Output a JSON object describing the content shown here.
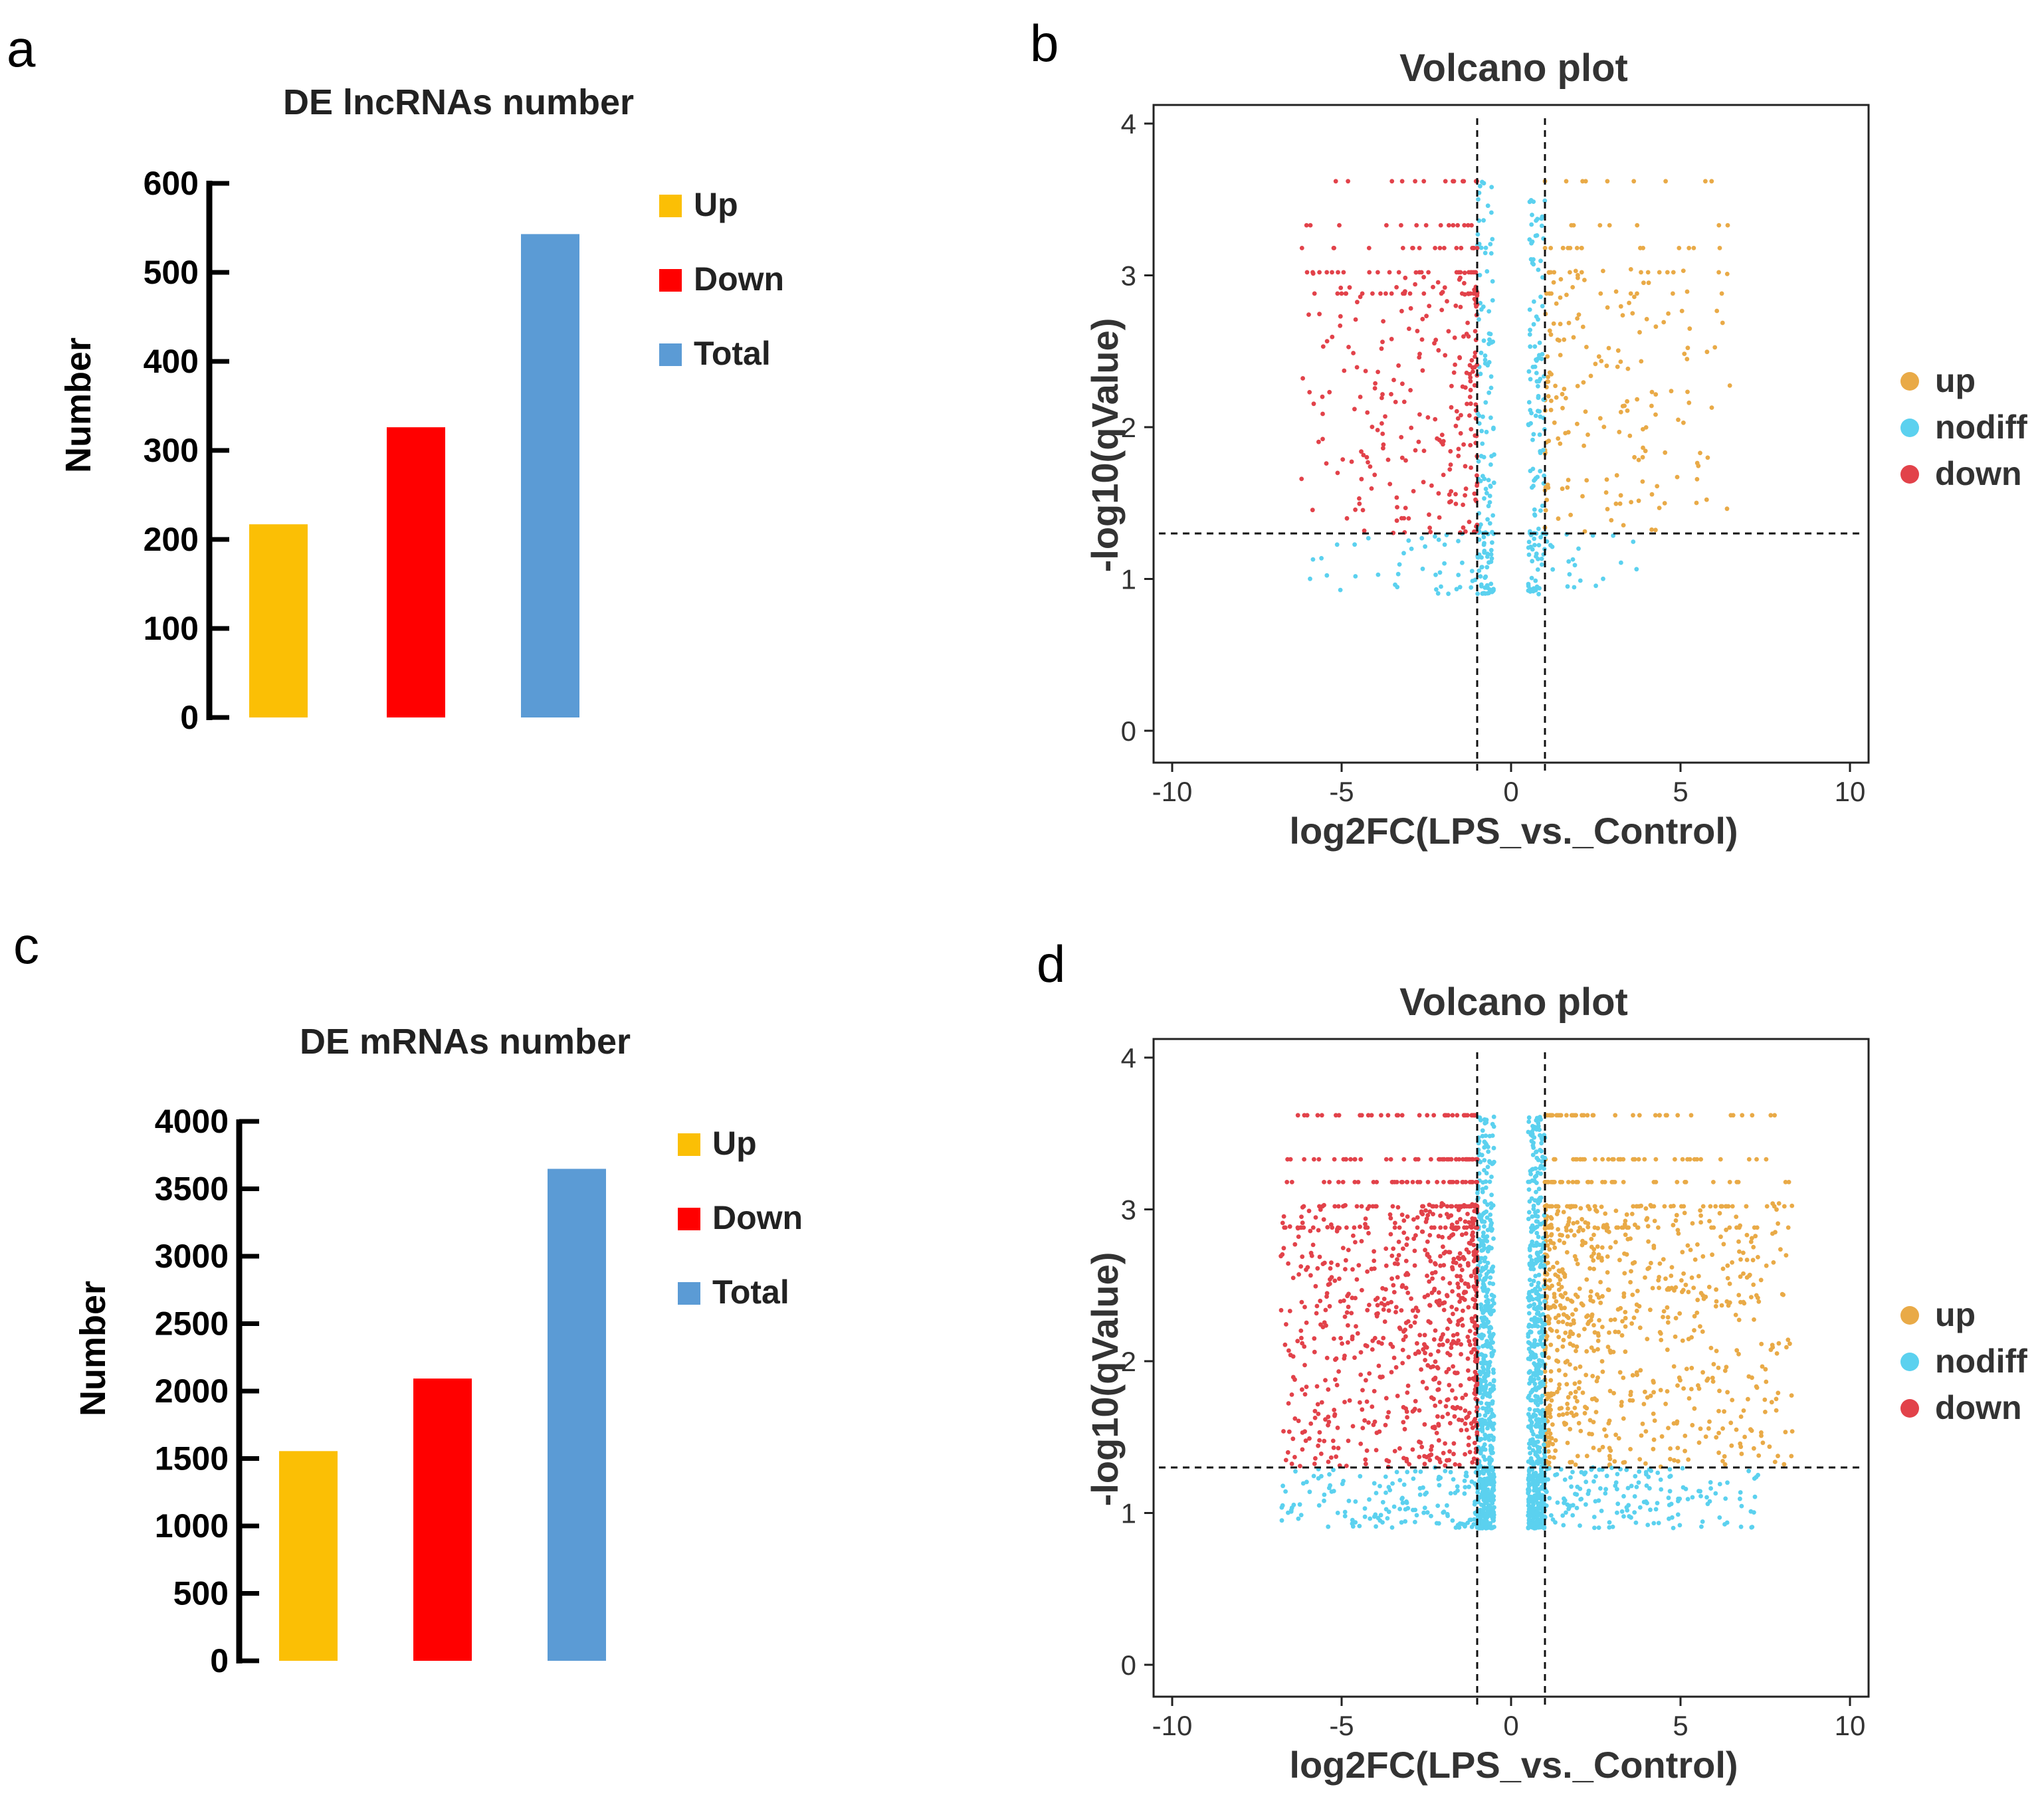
{
  "panels": {
    "a": "a",
    "b": "b",
    "c": "c",
    "d": "d"
  },
  "colors": {
    "up_bar": "#FBBF05",
    "down_bar": "#FF0000",
    "total_bar": "#5B9BD5",
    "v_up": "#E9AA47",
    "v_nodiff": "#5BD1EF",
    "v_down": "#E2424A"
  },
  "chart_data": [
    {
      "id": "a",
      "type": "bar",
      "title": "DE lncRNAs number",
      "ylabel": "Number",
      "xlabel": "",
      "categories": [
        "Up",
        "Down",
        "Total"
      ],
      "values": [
        217,
        326,
        543
      ],
      "ylim": [
        0,
        600
      ],
      "yticks": [
        "0",
        "100",
        "200",
        "300",
        "400",
        "500",
        "600"
      ],
      "legend": [
        "Up",
        "Down",
        "Total"
      ],
      "legend_position": "top-right"
    },
    {
      "id": "b",
      "type": "scatter",
      "title": "Volcano plot",
      "xlabel": "log2FC(LPS_vs._Control)",
      "ylabel": "-log10(qValue)",
      "xlim": [
        -10,
        10
      ],
      "ylim": [
        0,
        4
      ],
      "xticks": [
        "-10",
        "-5",
        "0",
        "5",
        "10"
      ],
      "yticks": [
        "0",
        "1",
        "2",
        "3",
        "4"
      ],
      "thresholds": {
        "x": [
          -1,
          1
        ],
        "y": 1.3
      },
      "legend": [
        "up",
        "nodiff",
        "down"
      ],
      "legend_position": "right",
      "series": [
        {
          "name": "up",
          "count": 220,
          "x_range": [
            1.0,
            6.5
          ],
          "y_range": [
            1.3,
            3.62
          ]
        },
        {
          "name": "nodiff",
          "count": 330,
          "x_range": [
            -6.2,
            3.8
          ],
          "y_range": [
            0.9,
            3.62
          ]
        },
        {
          "name": "down",
          "count": 330,
          "x_range": [
            -6.2,
            -1.0
          ],
          "y_range": [
            1.3,
            3.62
          ]
        }
      ]
    },
    {
      "id": "c",
      "type": "bar",
      "title": "DE mRNAs number",
      "ylabel": "Number",
      "xlabel": "",
      "categories": [
        "Up",
        "Down",
        "Total"
      ],
      "values": [
        1555,
        2093,
        3648
      ],
      "ylim": [
        0,
        4000
      ],
      "yticks": [
        "0",
        "500",
        "1000",
        "1500",
        "2000",
        "2500",
        "3000",
        "3500",
        "4000"
      ],
      "legend": [
        "Up",
        "Down",
        "Total"
      ],
      "legend_position": "top-right"
    },
    {
      "id": "d",
      "type": "scatter",
      "title": "Volcano plot",
      "xlabel": "log2FC(LPS_vs._Control)",
      "ylabel": "-log10(qValue)",
      "xlim": [
        -10,
        10
      ],
      "ylim": [
        0,
        4
      ],
      "xticks": [
        "-10",
        "-5",
        "0",
        "5",
        "10"
      ],
      "yticks": [
        "0",
        "1",
        "2",
        "3",
        "4"
      ],
      "thresholds": {
        "x": [
          -1,
          1
        ],
        "y": 1.3
      },
      "legend": [
        "up",
        "nodiff",
        "down"
      ],
      "legend_position": "right",
      "series": [
        {
          "name": "up",
          "count": 900,
          "x_range": [
            1.0,
            8.3
          ],
          "y_range": [
            1.3,
            3.62
          ]
        },
        {
          "name": "nodiff",
          "count": 1500,
          "x_range": [
            -6.8,
            7.3
          ],
          "y_range": [
            0.9,
            3.62
          ]
        },
        {
          "name": "down",
          "count": 900,
          "x_range": [
            -6.8,
            -1.0
          ],
          "y_range": [
            1.3,
            3.62
          ]
        }
      ]
    }
  ]
}
